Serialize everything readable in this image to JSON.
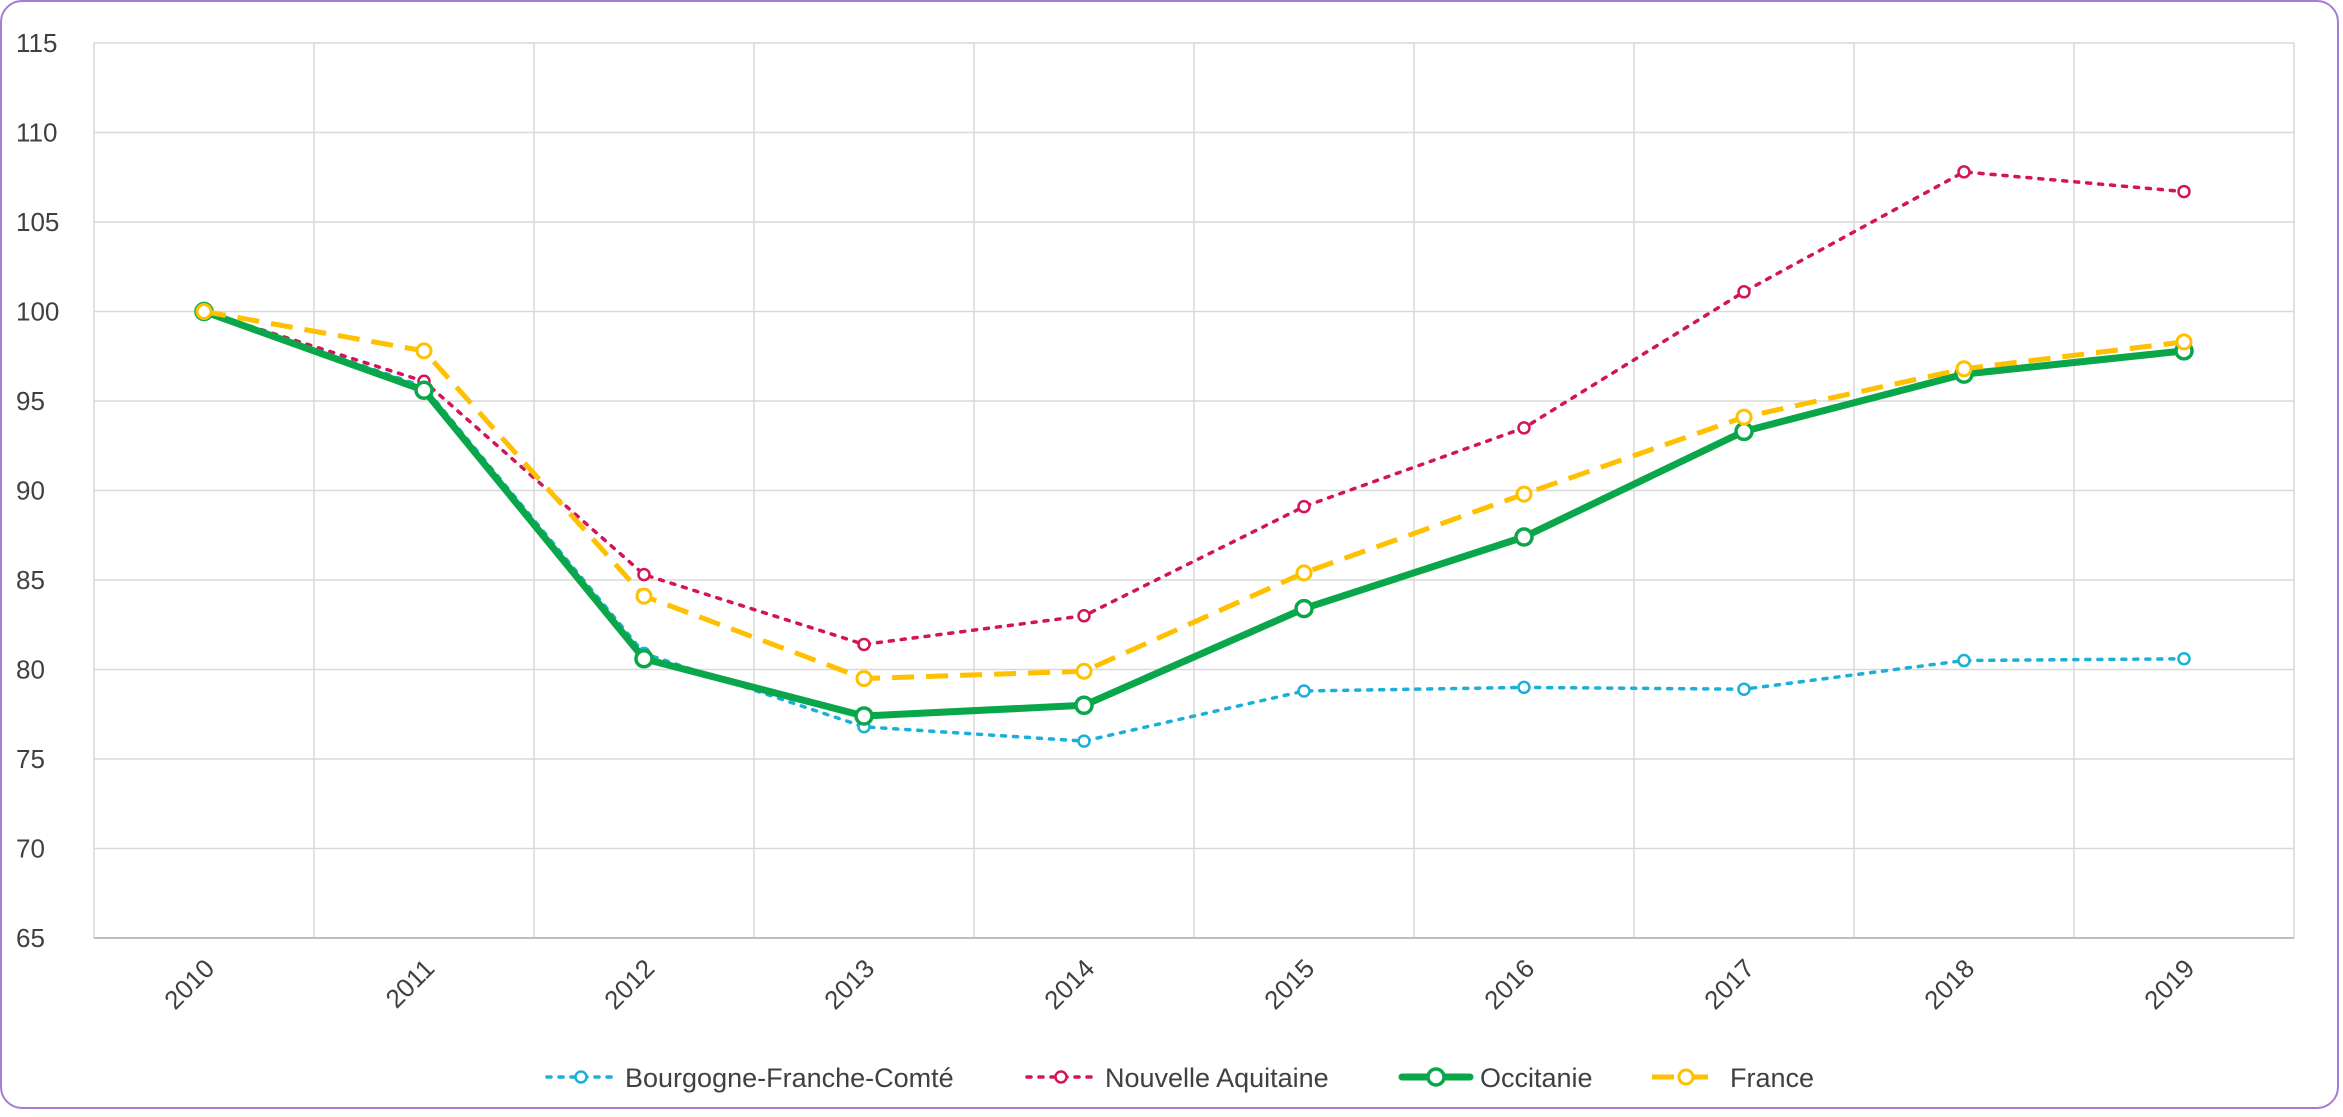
{
  "chart_data": {
    "type": "line",
    "title": "",
    "xlabel": "",
    "ylabel": "",
    "x": [
      "2010",
      "2011",
      "2012",
      "2013",
      "2014",
      "2015",
      "2016",
      "2017",
      "2018",
      "2019"
    ],
    "ylim": [
      65,
      115
    ],
    "yticks": [
      "65",
      "70",
      "75",
      "80",
      "85",
      "90",
      "95",
      "100",
      "105",
      "110",
      "115"
    ],
    "grid": true,
    "legend_position": "bottom",
    "series": [
      {
        "name": "Bourgogne-Franche-Comté",
        "color": "#1ab0d8",
        "style": "dotted",
        "values": [
          100,
          95.8,
          80.9,
          76.8,
          76.0,
          78.8,
          79.0,
          78.9,
          80.5,
          80.6
        ]
      },
      {
        "name": "Nouvelle Aquitaine",
        "color": "#d4145a",
        "style": "dotted",
        "values": [
          100,
          96.1,
          85.3,
          81.4,
          83.0,
          89.1,
          93.5,
          101.1,
          107.8,
          106.7
        ]
      },
      {
        "name": "Occitanie",
        "color": "#0aa64a",
        "style": "solid",
        "values": [
          100,
          95.6,
          80.6,
          77.4,
          78.0,
          83.4,
          87.4,
          93.3,
          96.5,
          97.8
        ]
      },
      {
        "name": "France",
        "color": "#ffc000",
        "style": "dashed",
        "values": [
          100,
          97.8,
          84.1,
          79.5,
          79.9,
          85.4,
          89.8,
          94.1,
          96.8,
          98.3
        ]
      }
    ]
  }
}
